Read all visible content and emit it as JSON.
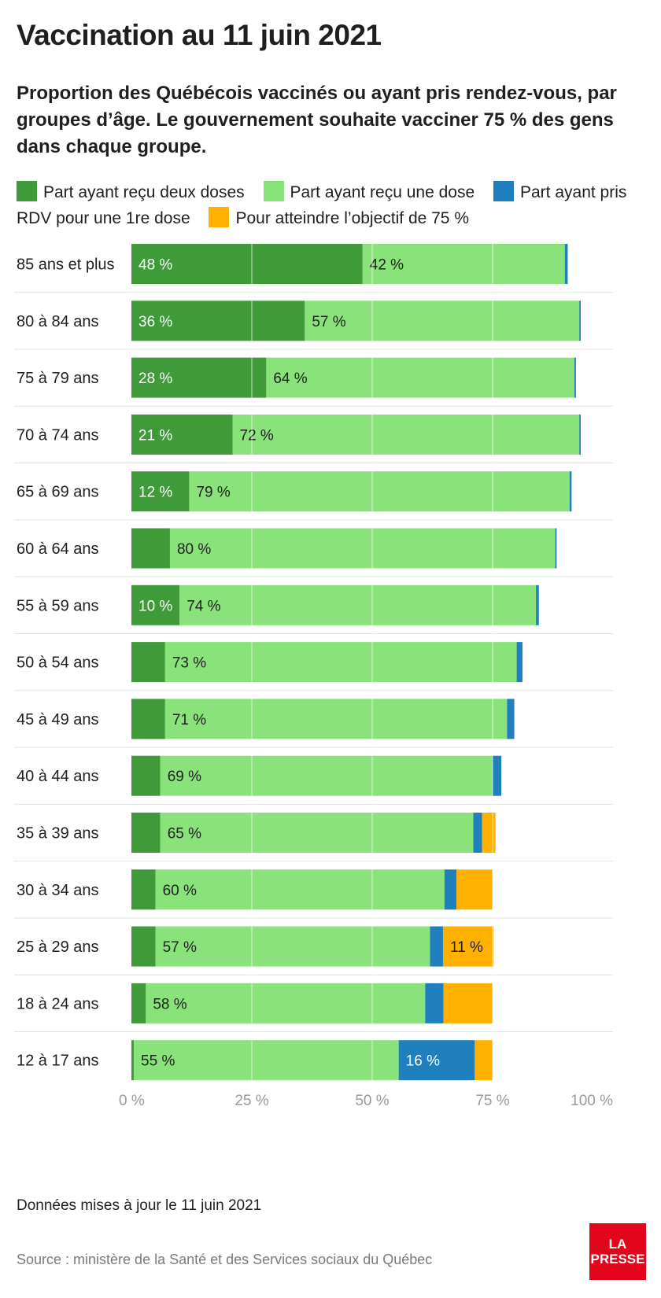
{
  "header": {
    "title": "Vaccination au 11 juin 2021",
    "subtitle": "Proportion des Québécois vaccinés ou ayant pris rendez-vous, par groupes d’âge. Le gouvernement souhaite vacciner 75 % des gens dans chaque groupe."
  },
  "legend": [
    {
      "label": "Part ayant reçu deux doses",
      "color": "#3f9a3a"
    },
    {
      "label": "Part ayant reçu une dose",
      "color": "#8ae27a"
    },
    {
      "label": "Part ayant pris RDV pour une 1re dose",
      "color": "#2080be"
    },
    {
      "label": "Pour atteindre l’objectif de 75 %",
      "color": "#ffb000"
    }
  ],
  "chart_data": {
    "type": "bar",
    "orientation": "horizontal",
    "stacked": true,
    "categories": [
      "85 ans et plus",
      "80 à 84 ans",
      "75 à 79 ans",
      "70 à 74 ans",
      "65 à 69 ans",
      "60 à 64 ans",
      "55 à 59 ans",
      "50 à 54 ans",
      "45 à 49 ans",
      "40 à 44 ans",
      "35 à 39 ans",
      "30 à 34 ans",
      "25 à 29 ans",
      "18 à 24 ans",
      "12 à 17 ans"
    ],
    "series": [
      {
        "name": "Part ayant reçu deux doses",
        "color": "#3f9a3a",
        "values": [
          48,
          36,
          28,
          21,
          12,
          8,
          10,
          7,
          7,
          6,
          6,
          5,
          5,
          3,
          0.5
        ],
        "labels": [
          "48 %",
          "36 %",
          "28 %",
          "21 %",
          "12 %",
          "",
          "10 %",
          "",
          "",
          "",
          "",
          "",
          "",
          "",
          ""
        ]
      },
      {
        "name": "Part ayant reçu une dose",
        "color": "#8ae27a",
        "values": [
          42,
          57,
          64,
          72,
          79,
          80,
          74,
          73,
          71,
          69,
          65,
          60,
          57,
          58,
          55
        ],
        "labels": [
          "42 %",
          "57 %",
          "64 %",
          "72 %",
          "79 %",
          "80 %",
          "74 %",
          "73 %",
          "71 %",
          "69 %",
          "65 %",
          "60 %",
          "57 %",
          "58 %",
          "55 %"
        ]
      },
      {
        "name": "Part ayant pris RDV pour une 1re dose",
        "color": "#2080be",
        "values": [
          0.6,
          0.3,
          0.3,
          0.3,
          0.4,
          0.3,
          0.6,
          1.2,
          1.5,
          1.8,
          1.8,
          2.5,
          2.7,
          3.8,
          15.8
        ],
        "labels": [
          "",
          "",
          "",
          "",
          "",
          "",
          "",
          "",
          "",
          "",
          "",
          "",
          "",
          "",
          "16 %"
        ]
      },
      {
        "name": "Pour atteindre l’objectif de 75 %",
        "color": "#ffb000",
        "values": [
          0,
          0,
          0,
          0,
          0,
          0,
          0,
          0,
          0,
          0,
          2.8,
          7.5,
          10.5,
          10.2,
          3.7
        ],
        "labels": [
          "",
          "",
          "",
          "",
          "",
          "",
          "",
          "",
          "",
          "",
          "",
          "",
          "11 %",
          "",
          ""
        ]
      }
    ],
    "xlim": [
      0,
      100
    ],
    "xticks": [
      "0 %",
      "25 %",
      "50 %",
      "75 %",
      "100 %"
    ],
    "grid": true,
    "legend_position": "top"
  },
  "footer": {
    "updated": "Données mises à jour le 11 juin 2021",
    "source": "Source : ministère de la Santé et des Services sociaux du Québec",
    "logo_line1": "LA",
    "logo_line2": "PRESSE",
    "logo_color": "#e3051b"
  }
}
